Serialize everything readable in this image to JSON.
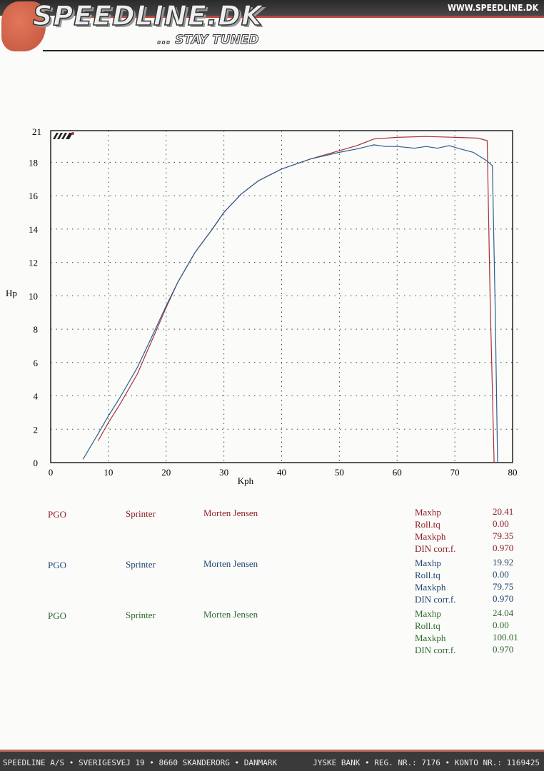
{
  "header": {
    "brand": "SPEEDLINE.DK",
    "slogan": "... STAY TUNED",
    "url": "WWW.SPEEDLINE.DK"
  },
  "footer": {
    "left": "SPEEDLINE A/S • SVERIGESVEJ 19 • 8660 SKANDERORG • DANMARK",
    "right": "JYSKE BANK • REG. NR.: 7176 • KONTO NR.: 1169425"
  },
  "colors": {
    "red": "#8e1f22",
    "blue": "#20466e",
    "green": "#2f6a2c"
  },
  "chart_data": {
    "type": "line",
    "xlabel": "Kph",
    "ylabel": "Hp",
    "xlim": [
      0,
      80
    ],
    "ylim": [
      0,
      19.9
    ],
    "xticks": [
      "0",
      "10",
      "20",
      "30",
      "40",
      "50",
      "60",
      "70",
      "80"
    ],
    "yticks": [
      "0",
      "2",
      "4",
      "6",
      "8",
      "10",
      "12",
      "14",
      "16",
      "18"
    ],
    "ytop_label": "21",
    "grid": true,
    "logo_text": "MP engineering",
    "series": [
      {
        "color": "#a8303a",
        "points": [
          [
            8.2,
            1.3
          ],
          [
            10,
            2.4
          ],
          [
            12,
            3.5
          ],
          [
            15,
            5.3
          ],
          [
            18,
            7.7
          ],
          [
            20,
            9.3
          ],
          [
            22,
            10.8
          ],
          [
            25,
            12.6
          ],
          [
            28,
            14.0
          ],
          [
            30,
            15.0
          ],
          [
            33,
            16.1
          ],
          [
            36,
            16.9
          ],
          [
            40,
            17.6
          ],
          [
            45,
            18.2
          ],
          [
            50,
            18.7
          ],
          [
            53,
            19.0
          ],
          [
            56,
            19.4
          ],
          [
            60,
            19.5
          ],
          [
            65,
            19.55
          ],
          [
            70,
            19.5
          ],
          [
            74,
            19.45
          ],
          [
            75.6,
            19.3
          ],
          [
            76.1,
            10
          ],
          [
            76.8,
            0
          ]
        ]
      },
      {
        "color": "#2b5f8a",
        "points": [
          [
            5.6,
            0.2
          ],
          [
            8,
            1.6
          ],
          [
            10,
            2.8
          ],
          [
            12,
            3.9
          ],
          [
            15,
            5.7
          ],
          [
            18,
            7.9
          ],
          [
            20,
            9.4
          ],
          [
            22,
            10.8
          ],
          [
            25,
            12.6
          ],
          [
            28,
            14.0
          ],
          [
            30,
            15.0
          ],
          [
            33,
            16.1
          ],
          [
            36,
            16.9
          ],
          [
            40,
            17.6
          ],
          [
            45,
            18.2
          ],
          [
            50,
            18.6
          ],
          [
            53,
            18.8
          ],
          [
            56,
            19.05
          ],
          [
            58,
            18.95
          ],
          [
            60,
            18.95
          ],
          [
            63,
            18.85
          ],
          [
            65,
            18.95
          ],
          [
            67,
            18.85
          ],
          [
            69,
            19.0
          ],
          [
            71,
            18.8
          ],
          [
            73.2,
            18.6
          ],
          [
            75.5,
            18.1
          ],
          [
            76.5,
            17.8
          ],
          [
            77,
            9
          ],
          [
            77.4,
            0
          ]
        ]
      }
    ]
  },
  "runs": [
    {
      "make": "PGO",
      "model": "Sprinter",
      "owner": "Morten Jensen",
      "stats": [
        [
          "Maxhp",
          "20.41"
        ],
        [
          "Roll.tq",
          "0.00"
        ],
        [
          "Maxkph",
          "79.35"
        ],
        [
          "DIN corr.f.",
          "0.970"
        ]
      ]
    },
    {
      "make": "PGO",
      "model": "Sprinter",
      "owner": "Morten Jensen",
      "stats": [
        [
          "Maxhp",
          "19.92"
        ],
        [
          "Roll.tq",
          "0.00"
        ],
        [
          "Maxkph",
          "79.75"
        ],
        [
          "DIN corr.f.",
          "0.970"
        ]
      ]
    },
    {
      "make": "PGO",
      "model": "Sprinter",
      "owner": "Morten Jensen",
      "stats": [
        [
          "Maxhp",
          "24.04"
        ],
        [
          "Roll.tq",
          "0.00"
        ],
        [
          "Maxkph",
          "100.01"
        ],
        [
          "DIN corr.f.",
          "0.970"
        ]
      ]
    }
  ]
}
